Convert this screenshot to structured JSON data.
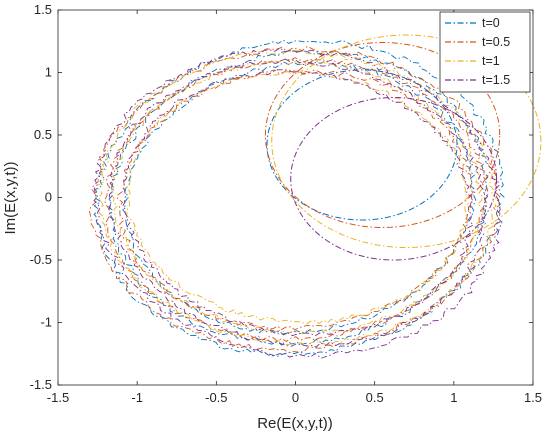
{
  "colors": {
    "t0": "#0072BD",
    "t05": "#D95319",
    "t1": "#EDB120",
    "t15": "#7E2F8E",
    "axes": "#262626"
  },
  "chart_data": {
    "type": "line",
    "title": "",
    "xlabel": "Re(E(x,y,t))",
    "ylabel": "Im(E(x,y,t))",
    "xlim": [
      -1.5,
      1.5
    ],
    "ylim": [
      -1.5,
      1.5
    ],
    "xticks": [
      -1.5,
      -1,
      -0.5,
      0,
      0.5,
      1,
      1.5
    ],
    "yticks": [
      -1.5,
      -1,
      -0.5,
      0,
      0.5,
      1,
      1.5
    ],
    "xtick_labels": [
      "-1.5",
      "-1",
      "-0.5",
      "0",
      "0.5",
      "1",
      "1.5"
    ],
    "ytick_labels": [
      "-1.5",
      "-1",
      "-0.5",
      "0",
      "0.5",
      "1",
      "1.5"
    ],
    "grid": false,
    "legend": "top-right",
    "line_style": "dash-dot",
    "series": [
      {
        "name": "t=0",
        "color": "#0072BD",
        "inner_loop": {
          "center": [
            0.42,
            0.42
          ],
          "radius": 0.6
        },
        "outer_ring": {
          "x_range": [
            -1.25,
            1.3
          ],
          "y_range": [
            -1.25,
            1.25
          ]
        }
      },
      {
        "name": "t=0.5",
        "color": "#D95319",
        "inner_loop": {
          "center": [
            0.55,
            0.5
          ],
          "radius": 0.74
        },
        "outer_ring": {
          "x_range": [
            -1.25,
            1.25
          ],
          "y_range": [
            -1.25,
            1.22
          ]
        }
      },
      {
        "name": "t=1",
        "color": "#EDB120",
        "inner_loop": {
          "center": [
            0.7,
            0.45
          ],
          "radius": 0.85
        },
        "outer_ring": {
          "x_range": [
            -1.2,
            1.22
          ],
          "y_range": [
            -1.2,
            1.2
          ]
        }
      },
      {
        "name": "t=1.5",
        "color": "#7E2F8E",
        "inner_loop": {
          "center": [
            0.62,
            0.15
          ],
          "radius": 0.65
        },
        "outer_ring": {
          "x_range": [
            -1.25,
            1.28
          ],
          "y_range": [
            -1.27,
            1.18
          ]
        }
      }
    ]
  }
}
